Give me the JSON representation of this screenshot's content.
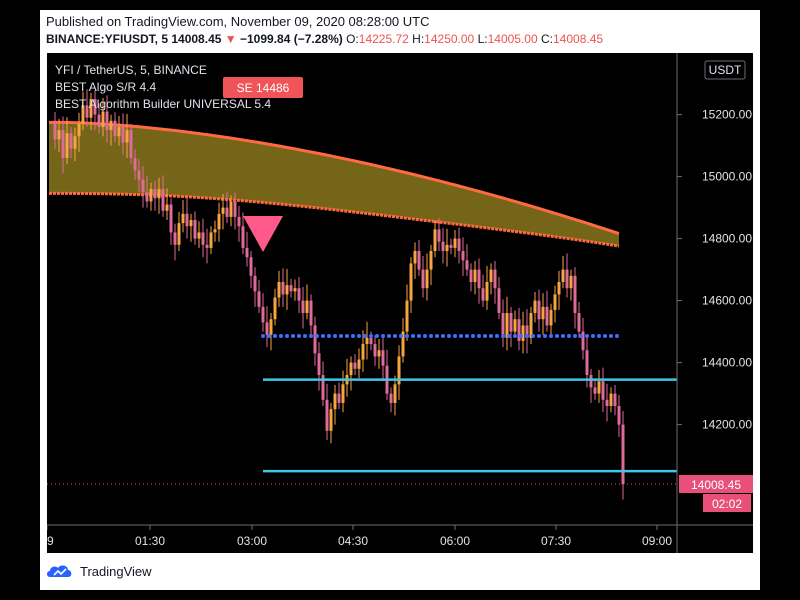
{
  "header": {
    "published": "Published on TradingView.com, November 09, 2020 08:28:00 UTC",
    "symbol": "BINANCE:YFIUSDT, 5",
    "last": "14008.45",
    "change": "−1099.84 (−7.28%)",
    "o_label": "O:",
    "o_value": "14225.72",
    "h_label": "H:",
    "h_value": "14250.00",
    "l_label": "L:",
    "l_value": "14005.00",
    "c_label": "C:",
    "c_value": "14008.45"
  },
  "legend": {
    "title": "YFI / TetherUS, 5, BINANCE",
    "indicator1": "BEST Algo S/R 4.4",
    "indicator2": "BEST Algorithm Builder UNIVERSAL 5.4",
    "signal_badge": "SE 14486"
  },
  "price_axis": {
    "currency": "USDT",
    "last_price": "14008.45",
    "countdown": "02:02"
  },
  "footer": {
    "brand": "TradingView"
  },
  "colors": {
    "up": "#f7a540",
    "down": "#e06a99",
    "band_fill": "#7a6a1a",
    "band_edge": "#ff6a40",
    "sr_line": "#3fc8e6",
    "dot_line": "#3d6fff",
    "signal": "#ff5a8a",
    "price_label": "#e8507a"
  },
  "chart_data": {
    "type": "candlestick",
    "title": "YFI / TetherUS, 5, BINANCE",
    "x_ticks": [
      "9",
      "01:30",
      "03:00",
      "04:30",
      "06:00",
      "07:30",
      "09:00"
    ],
    "y_ticks": [
      14200,
      14400,
      14600,
      14800,
      15000,
      15200
    ],
    "ylim": [
      13880,
      15420
    ],
    "candles": [
      [
        14225,
        14250,
        14005,
        14008.45
      ]
    ],
    "sr_levels": [
      14345,
      14050
    ],
    "dotted_level": 14486,
    "sell_signal": {
      "time": "03:10",
      "price": 14486
    }
  }
}
